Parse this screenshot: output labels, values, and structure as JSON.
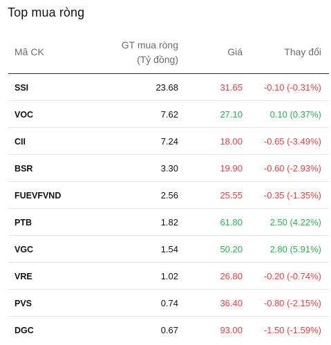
{
  "title": "Top mua ròng",
  "columns": {
    "symbol": "Mã CK",
    "value_line1": "GT mua ròng",
    "value_line2": "(Tỷ đồng)",
    "price": "Giá",
    "change": "Thay đổi"
  },
  "colors": {
    "down": "#e8413e",
    "up": "#2bb24c"
  },
  "rows": [
    {
      "symbol": "SSI",
      "value": "23.68",
      "price": "31.65",
      "change": "-0.10 (-0.31%)",
      "trend": "down"
    },
    {
      "symbol": "VOC",
      "value": "7.62",
      "price": "27.10",
      "change": "0.10 (0.37%)",
      "trend": "up"
    },
    {
      "symbol": "CII",
      "value": "7.24",
      "price": "18.00",
      "change": "-0.65 (-3.49%)",
      "trend": "down"
    },
    {
      "symbol": "BSR",
      "value": "3.30",
      "price": "19.90",
      "change": "-0.60 (-2.93%)",
      "trend": "down"
    },
    {
      "symbol": "FUEVFVND",
      "value": "2.56",
      "price": "25.55",
      "change": "-0.35 (-1.35%)",
      "trend": "down"
    },
    {
      "symbol": "PTB",
      "value": "1.82",
      "price": "61.80",
      "change": "2.50 (4.22%)",
      "trend": "up"
    },
    {
      "symbol": "VGC",
      "value": "1.54",
      "price": "50.20",
      "change": "2.80 (5.91%)",
      "trend": "up"
    },
    {
      "symbol": "VRE",
      "value": "1.02",
      "price": "26.80",
      "change": "-0.20 (-0.74%)",
      "trend": "down"
    },
    {
      "symbol": "PVS",
      "value": "0.74",
      "price": "36.40",
      "change": "-0.80 (-2.15%)",
      "trend": "down"
    },
    {
      "symbol": "DGC",
      "value": "0.67",
      "price": "93.00",
      "change": "-1.50 (-1.59%)",
      "trend": "down"
    }
  ]
}
